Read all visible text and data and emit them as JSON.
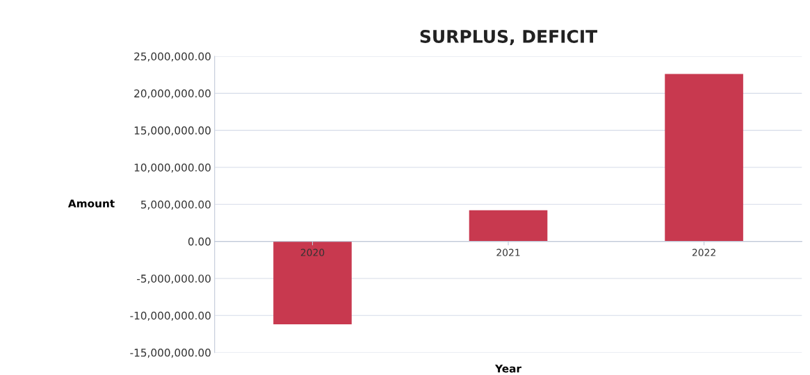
{
  "chart_data": {
    "type": "bar",
    "title": "SURPLUS, DEFICIT",
    "xlabel": "Year",
    "ylabel": "Amount",
    "categories": [
      "2020",
      "2021",
      "2022"
    ],
    "values": [
      -11200000,
      4200000,
      22600000
    ],
    "color": "#c8394f",
    "ylim": [
      -15000000,
      25000000
    ],
    "yticks": [
      {
        "value": -15000000,
        "label": "-15,000,000.00"
      },
      {
        "value": -10000000,
        "label": "-10,000,000.00"
      },
      {
        "value": -5000000,
        "label": "-5,000,000.00"
      },
      {
        "value": 0,
        "label": "0.00"
      },
      {
        "value": 5000000,
        "label": "5,000,000.00"
      },
      {
        "value": 10000000,
        "label": "10,000,000.00"
      },
      {
        "value": 15000000,
        "label": "15,000,000.00"
      },
      {
        "value": 20000000,
        "label": "20,000,000.00"
      },
      {
        "value": 25000000,
        "label": "25,000,000.00"
      }
    ],
    "grid": "y"
  }
}
